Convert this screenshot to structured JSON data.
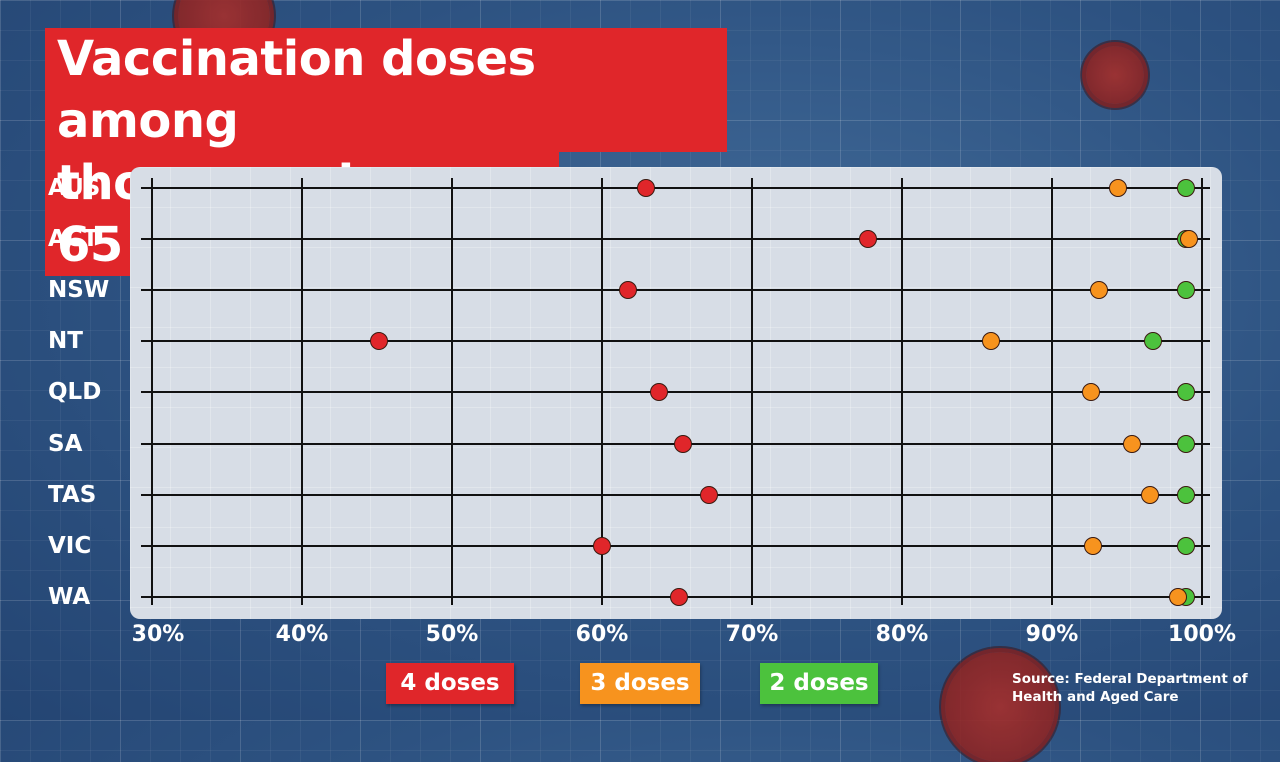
{
  "title": {
    "line1": "Vaccination doses among",
    "line2": "those aged over 65"
  },
  "legend": [
    {
      "label": "4 doses",
      "color": "#e0262a"
    },
    {
      "label": "3 doses",
      "color": "#f7931e"
    },
    {
      "label": "2 doses",
      "color": "#4cc23d"
    }
  ],
  "source": {
    "line1": "Source: Federal Department of",
    "line2": "Health and Aged Care"
  },
  "axis": {
    "ticks": [
      "30%",
      "40%",
      "50%",
      "60%",
      "70%",
      "80%",
      "90%",
      "100%"
    ]
  },
  "rows": [
    "AUS",
    "ACT",
    "NSW",
    "NT",
    "QLD",
    "SA",
    "TAS",
    "VIC",
    "WA"
  ],
  "chart_data": {
    "type": "scatter",
    "subtype": "dot-plot",
    "title": "Vaccination doses among those aged over 65",
    "xlabel": "",
    "ylabel": "",
    "xlim": [
      30,
      100
    ],
    "x_ticks": [
      "30%",
      "40%",
      "50%",
      "60%",
      "70%",
      "80%",
      "90%",
      "100%"
    ],
    "categories": [
      "AUS",
      "ACT",
      "NSW",
      "NT",
      "QLD",
      "SA",
      "TAS",
      "VIC",
      "WA"
    ],
    "series": [
      {
        "name": "4 doses",
        "color": "#e0262a",
        "values": [
          62.9,
          77.7,
          61.7,
          45.1,
          63.8,
          65.4,
          67.1,
          60.0,
          65.1
        ]
      },
      {
        "name": "3 doses",
        "color": "#f7931e",
        "values": [
          94.4,
          99.1,
          93.1,
          85.9,
          92.6,
          95.3,
          96.5,
          92.7,
          98.4
        ]
      },
      {
        "name": "2 doses",
        "color": "#4cc23d",
        "values": [
          98.9,
          98.9,
          98.9,
          96.7,
          98.9,
          98.9,
          98.9,
          98.9,
          98.9
        ]
      }
    ],
    "grid": true,
    "legend_position": "bottom",
    "annotation": "Source: Federal Department of Health and Aged Care"
  }
}
